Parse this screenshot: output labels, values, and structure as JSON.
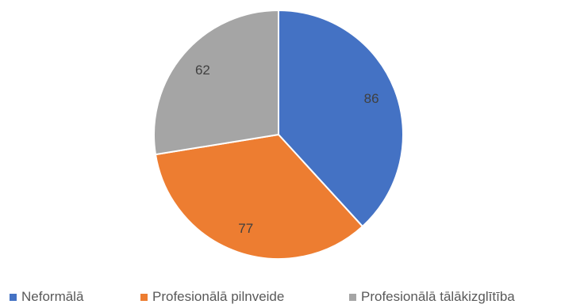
{
  "chart_data": {
    "type": "pie",
    "title": "",
    "categories": [
      "Neformālā",
      "Profesionālā pilnveide",
      "Profesionālā tālākizglītība"
    ],
    "values": [
      86,
      77,
      62
    ],
    "data_labels": [
      "86",
      "77",
      "62"
    ],
    "colors": [
      "#4472C4",
      "#ED7D31",
      "#A5A5A5"
    ],
    "legend_position": "bottom",
    "start_angle": "12 o'clock, clockwise"
  }
}
